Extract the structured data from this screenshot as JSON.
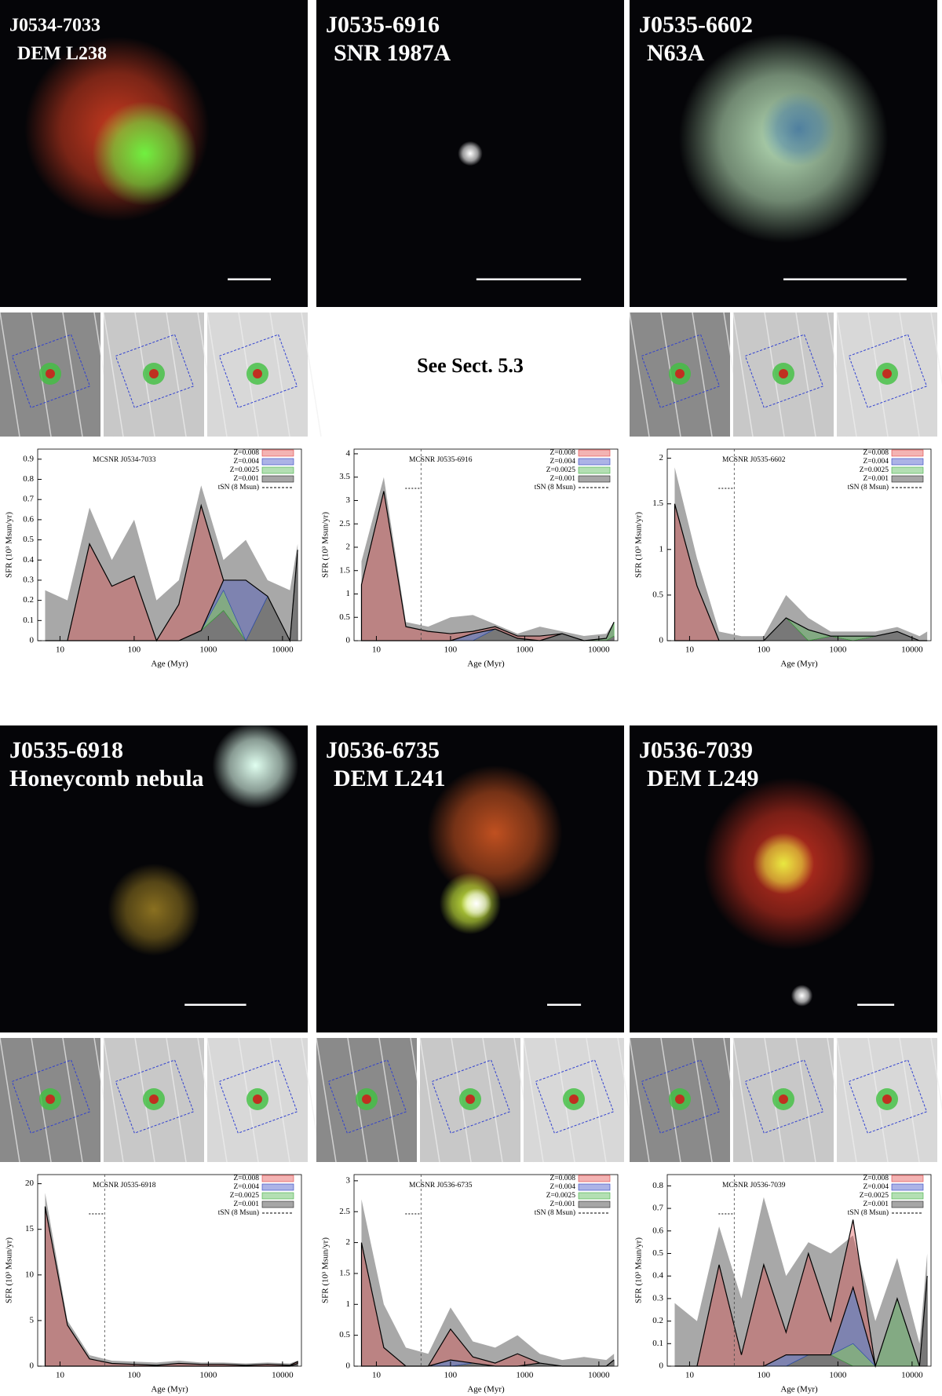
{
  "note": "See Sect. 5.3",
  "panels": [
    {
      "id": "J0534-7033",
      "name": "DEM L238",
      "chart_data": {
        "type": "area",
        "annotation": "MCSNR J0534-7033",
        "xlabel": "Age (Myr)",
        "ylabel": "SFR (10³ Msun/yr)",
        "x": [
          6.3,
          12.6,
          25,
          50,
          100,
          200,
          400,
          800,
          1600,
          3200,
          6300,
          12600,
          16000
        ],
        "xlim": [
          5,
          18000
        ],
        "xticks": [
          10,
          100,
          1000,
          10000
        ],
        "log_x": true,
        "ylim": [
          0,
          0.95
        ],
        "yticks": [
          0,
          0.1,
          0.2,
          0.3,
          0.4,
          0.5,
          0.6,
          0.7,
          0.8,
          0.9
        ],
        "series": [
          {
            "name": "Z=0.008",
            "color": "#e04040",
            "values": [
              0,
              0,
              0.48,
              0.27,
              0.32,
              0,
              0.18,
              0.62,
              0,
              0,
              0,
              0,
              0
            ]
          },
          {
            "name": "Z=0.004",
            "color": "#3040c0",
            "values": [
              0,
              0,
              0,
              0,
              0,
              0,
              0,
              0,
              0.05,
              0.3,
              0,
              0,
              0
            ]
          },
          {
            "name": "Z=0.0025",
            "color": "#40b040",
            "values": [
              0,
              0,
              0,
              0,
              0,
              0,
              0,
              0,
              0.1,
              0,
              0,
              0,
              0
            ]
          },
          {
            "name": "Z=0.001",
            "color": "#202020",
            "values": [
              0,
              0,
              0,
              0,
              0,
              0,
              0,
              0.05,
              0.15,
              0,
              0.22,
              0,
              0.45
            ]
          }
        ],
        "error_upper": [
          0.25,
          0.2,
          0.66,
          0.4,
          0.6,
          0.2,
          0.3,
          0.77,
          0.4,
          0.5,
          0.3,
          0.25,
          0.48
        ],
        "tsn": {
          "name": "tSN (8 Msun)",
          "x": null
        }
      }
    },
    {
      "id": "J0535-6916",
      "name": "SNR 1987A",
      "chart_data": {
        "type": "area",
        "annotation": "MCSNR J0535-6916",
        "xlabel": "Age (Myr)",
        "ylabel": "SFR (10³ Msun/yr)",
        "x": [
          6.3,
          12.6,
          25,
          50,
          100,
          200,
          400,
          800,
          1600,
          3200,
          6300,
          12600,
          16000
        ],
        "xlim": [
          5,
          18000
        ],
        "xticks": [
          10,
          100,
          1000,
          10000
        ],
        "log_x": true,
        "ylim": [
          0,
          4.1
        ],
        "yticks": [
          0,
          0.5,
          1,
          1.5,
          2,
          2.5,
          3,
          3.5,
          4
        ],
        "series": [
          {
            "name": "Z=0.008",
            "color": "#e04040",
            "values": [
              1.2,
              3.2,
              0.3,
              0.2,
              0.15,
              0.05,
              0.05,
              0.05,
              0.1,
              0,
              0,
              0,
              0
            ]
          },
          {
            "name": "Z=0.004",
            "color": "#3040c0",
            "values": [
              0,
              0,
              0,
              0,
              0,
              0.15,
              0,
              0,
              0,
              0,
              0,
              0,
              0
            ]
          },
          {
            "name": "Z=0.0025",
            "color": "#40b040",
            "values": [
              0,
              0,
              0,
              0,
              0,
              0,
              0,
              0,
              0,
              0,
              0,
              0.05,
              0.3
            ]
          },
          {
            "name": "Z=0.001",
            "color": "#202020",
            "values": [
              0,
              0,
              0,
              0,
              0,
              0,
              0.25,
              0.05,
              0,
              0.15,
              0,
              0,
              0.1
            ]
          }
        ],
        "error_upper": [
          1.7,
          3.5,
          0.4,
          0.3,
          0.5,
          0.55,
          0.35,
          0.15,
          0.3,
          0.2,
          0.1,
          0.15,
          0.4
        ],
        "tsn": {
          "name": "tSN (8 Msun)",
          "x": 40
        }
      }
    },
    {
      "id": "J0535-6602",
      "name": "N63A",
      "chart_data": {
        "type": "area",
        "annotation": "MCSNR J0535-6602",
        "xlabel": "Age (Myr)",
        "ylabel": "SFR (10³ Msun/yr)",
        "x": [
          6.3,
          12.6,
          25,
          50,
          100,
          200,
          400,
          800,
          1600,
          3200,
          6300,
          12600,
          16000
        ],
        "xlim": [
          5,
          18000
        ],
        "xticks": [
          10,
          100,
          1000,
          10000
        ],
        "log_x": true,
        "ylim": [
          0,
          2.1
        ],
        "yticks": [
          0,
          0.5,
          1,
          1.5,
          2
        ],
        "series": [
          {
            "name": "Z=0.008",
            "color": "#e04040",
            "values": [
              1.5,
              0.6,
              0,
              0,
              0,
              0,
              0,
              0,
              0,
              0,
              0,
              0,
              0
            ]
          },
          {
            "name": "Z=0.004",
            "color": "#3040c0",
            "values": [
              0,
              0,
              0,
              0,
              0,
              0,
              0,
              0,
              0,
              0,
              0,
              0,
              0
            ]
          },
          {
            "name": "Z=0.0025",
            "color": "#40b040",
            "values": [
              0,
              0,
              0,
              0,
              0,
              0,
              0.12,
              0,
              0.05,
              0,
              0,
              0,
              0
            ]
          },
          {
            "name": "Z=0.001",
            "color": "#202020",
            "values": [
              0,
              0,
              0,
              0,
              0,
              0.25,
              0,
              0.05,
              0,
              0.05,
              0.1,
              0,
              0
            ]
          }
        ],
        "error_upper": [
          1.9,
          0.9,
          0.1,
          0.05,
          0.05,
          0.5,
          0.25,
          0.1,
          0.1,
          0.1,
          0.15,
          0.05,
          0.1
        ],
        "tsn": {
          "name": "tSN (8 Msun)",
          "x": 40
        }
      }
    },
    {
      "id": "J0535-6918",
      "name": "Honeycomb nebula",
      "chart_data": {
        "type": "area",
        "annotation": "MCSNR J0535-6918",
        "xlabel": "Age (Myr)",
        "ylabel": "SFR (10³ Msun/yr)",
        "x": [
          6.3,
          12.6,
          25,
          50,
          100,
          200,
          400,
          800,
          1600,
          3200,
          6300,
          12600,
          16000
        ],
        "xlim": [
          5,
          18000
        ],
        "xticks": [
          10,
          100,
          1000,
          10000
        ],
        "log_x": true,
        "ylim": [
          0,
          21
        ],
        "yticks": [
          0,
          5,
          10,
          15,
          20
        ],
        "series": [
          {
            "name": "Z=0.008",
            "color": "#e04040",
            "values": [
              17.5,
              4.5,
              0.8,
              0.3,
              0.2,
              0.1,
              0.3,
              0.2,
              0.2,
              0.1,
              0.2,
              0.1,
              0.2
            ]
          },
          {
            "name": "Z=0.004",
            "color": "#3040c0",
            "values": [
              0,
              0,
              0,
              0,
              0,
              0,
              0,
              0,
              0,
              0,
              0,
              0,
              0
            ]
          },
          {
            "name": "Z=0.0025",
            "color": "#40b040",
            "values": [
              0,
              0,
              0,
              0,
              0,
              0,
              0,
              0,
              0,
              0,
              0,
              0,
              0
            ]
          },
          {
            "name": "Z=0.001",
            "color": "#202020",
            "values": [
              0,
              0,
              0,
              0,
              0,
              0,
              0,
              0,
              0,
              0,
              0,
              0,
              0.3
            ]
          }
        ],
        "error_upper": [
          19,
          5,
          1.2,
          0.6,
          0.5,
          0.4,
          0.6,
          0.4,
          0.4,
          0.3,
          0.4,
          0.3,
          0.6
        ],
        "tsn": {
          "name": "tSN (8 Msun)",
          "x": 40
        }
      }
    },
    {
      "id": "J0536-6735",
      "name": "DEM L241",
      "chart_data": {
        "type": "area",
        "annotation": "MCSNR J0536-6735",
        "xlabel": "Age (Myr)",
        "ylabel": "SFR (10³ Msun/yr)",
        "x": [
          6.3,
          12.6,
          25,
          50,
          100,
          200,
          400,
          800,
          1600,
          3200,
          6300,
          12600,
          16000
        ],
        "xlim": [
          5,
          18000
        ],
        "xticks": [
          10,
          100,
          1000,
          10000
        ],
        "log_x": true,
        "ylim": [
          0,
          3.1
        ],
        "yticks": [
          0,
          0.5,
          1,
          1.5,
          2,
          2.5,
          3
        ],
        "series": [
          {
            "name": "Z=0.008",
            "color": "#e04040",
            "values": [
              2.0,
              0.3,
              0,
              0,
              0.5,
              0.1,
              0.05,
              0.2,
              0,
              0,
              0,
              0,
              0
            ]
          },
          {
            "name": "Z=0.004",
            "color": "#3040c0",
            "values": [
              0,
              0,
              0,
              0,
              0.1,
              0,
              0,
              0,
              0,
              0,
              0,
              0,
              0
            ]
          },
          {
            "name": "Z=0.0025",
            "color": "#40b040",
            "values": [
              0,
              0,
              0,
              0,
              0,
              0,
              0,
              0,
              0,
              0,
              0,
              0,
              0
            ]
          },
          {
            "name": "Z=0.001",
            "color": "#202020",
            "values": [
              0,
              0,
              0,
              0,
              0,
              0.05,
              0,
              0,
              0.05,
              0,
              0,
              0,
              0.1
            ]
          }
        ],
        "error_upper": [
          2.7,
          1.0,
          0.3,
          0.2,
          0.95,
          0.4,
          0.3,
          0.5,
          0.2,
          0.1,
          0.15,
          0.1,
          0.2
        ],
        "tsn": {
          "name": "tSN (8 Msun)",
          "x": 40
        }
      }
    },
    {
      "id": "J0536-7039",
      "name": "DEM L249",
      "chart_data": {
        "type": "area",
        "annotation": "MCSNR J0536-7039",
        "xlabel": "Age (Myr)",
        "ylabel": "SFR (10³ Msun/yr)",
        "x": [
          6.3,
          12.6,
          25,
          50,
          100,
          200,
          400,
          800,
          1600,
          3200,
          6300,
          12600,
          16000
        ],
        "xlim": [
          5,
          18000
        ],
        "xticks": [
          10,
          100,
          1000,
          10000
        ],
        "log_x": true,
        "ylim": [
          0,
          0.85
        ],
        "yticks": [
          0,
          0.1,
          0.2,
          0.3,
          0.4,
          0.5,
          0.6,
          0.7,
          0.8
        ],
        "series": [
          {
            "name": "Z=0.008",
            "color": "#e04040",
            "values": [
              0,
              0,
              0.45,
              0.05,
              0.45,
              0.1,
              0.45,
              0.15,
              0.3,
              0,
              0,
              0,
              0
            ]
          },
          {
            "name": "Z=0.004",
            "color": "#3040c0",
            "values": [
              0,
              0,
              0,
              0,
              0,
              0.05,
              0,
              0,
              0.25,
              0,
              0,
              0,
              0
            ]
          },
          {
            "name": "Z=0.0025",
            "color": "#40b040",
            "values": [
              0,
              0,
              0,
              0,
              0,
              0,
              0,
              0,
              0.1,
              0,
              0.3,
              0,
              0
            ]
          },
          {
            "name": "Z=0.001",
            "color": "#202020",
            "values": [
              0,
              0,
              0,
              0,
              0,
              0,
              0.05,
              0.05,
              0,
              0,
              0,
              0,
              0.4
            ]
          }
        ],
        "error_upper": [
          0.28,
          0.2,
          0.62,
          0.3,
          0.75,
          0.4,
          0.55,
          0.5,
          0.58,
          0.2,
          0.48,
          0.1,
          0.5
        ],
        "tsn": {
          "name": "tSN (8 Msun)",
          "x": 40
        }
      }
    }
  ]
}
